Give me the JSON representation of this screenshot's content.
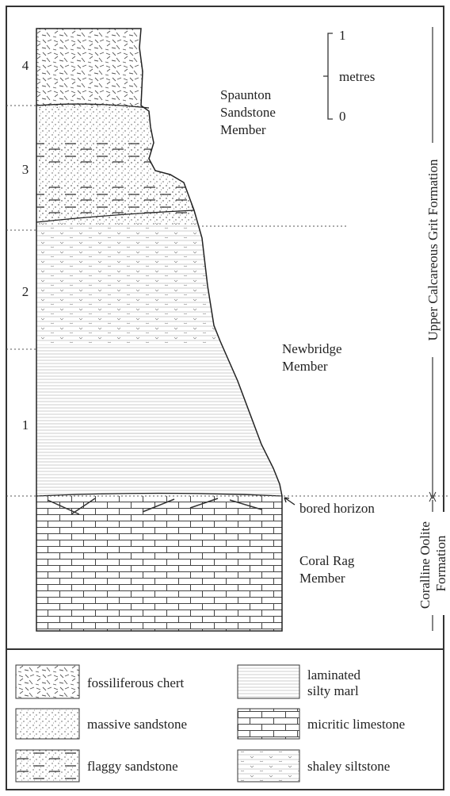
{
  "depth_labels": [
    "4",
    "3",
    "2",
    "1"
  ],
  "scale_bar": {
    "top": "1",
    "unit": "metres",
    "bottom": "0"
  },
  "units": [
    {
      "label": [
        "Spaunton",
        "Sandstone",
        "Member"
      ]
    },
    {
      "label": [
        "Newbridge",
        "Member"
      ]
    },
    {
      "label": [
        "Coral Rag",
        "Member"
      ]
    }
  ],
  "bored_horizon": "bored horizon",
  "formations": [
    {
      "label": [
        "Upper Calcareous Grit Formation"
      ]
    },
    {
      "label": [
        "Coralline Oolite",
        "Formation"
      ]
    }
  ],
  "legend": [
    {
      "label": [
        "fossiliferous chert"
      ]
    },
    {
      "label": [
        "laminated",
        "silty marl"
      ]
    },
    {
      "label": [
        "massive sandstone"
      ]
    },
    {
      "label": [
        "micritic limestone"
      ]
    },
    {
      "label": [
        "flaggy sandstone"
      ]
    },
    {
      "label": [
        "shaley siltstone"
      ]
    }
  ]
}
